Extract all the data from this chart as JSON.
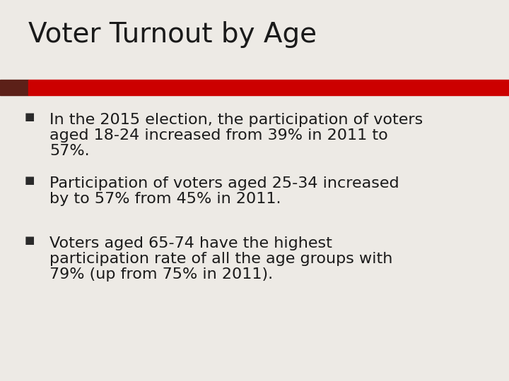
{
  "title": "Voter Turnout by Age",
  "title_fontsize": 28,
  "title_color": "#1a1a1a",
  "background_color": "#edeae5",
  "bar_left_color": "#5c2018",
  "bar_right_color": "#cc0000",
  "bullet_color": "#2a2a2a",
  "bullet_fontsize": 13,
  "text_fontsize": 16,
  "text_color": "#1a1a1a",
  "bullet_points": [
    [
      "In the 2015 election, the participation of voters",
      "aged 18-24 increased from 39% in 2011 to",
      "57%."
    ],
    [
      "Participation of voters aged 25-34 increased",
      "by to 57% from 45% in 2011."
    ],
    [
      "Voters aged 65-74 have the highest",
      "participation rate of all the age groups with",
      "79% (up from 75% in 2011)."
    ]
  ]
}
